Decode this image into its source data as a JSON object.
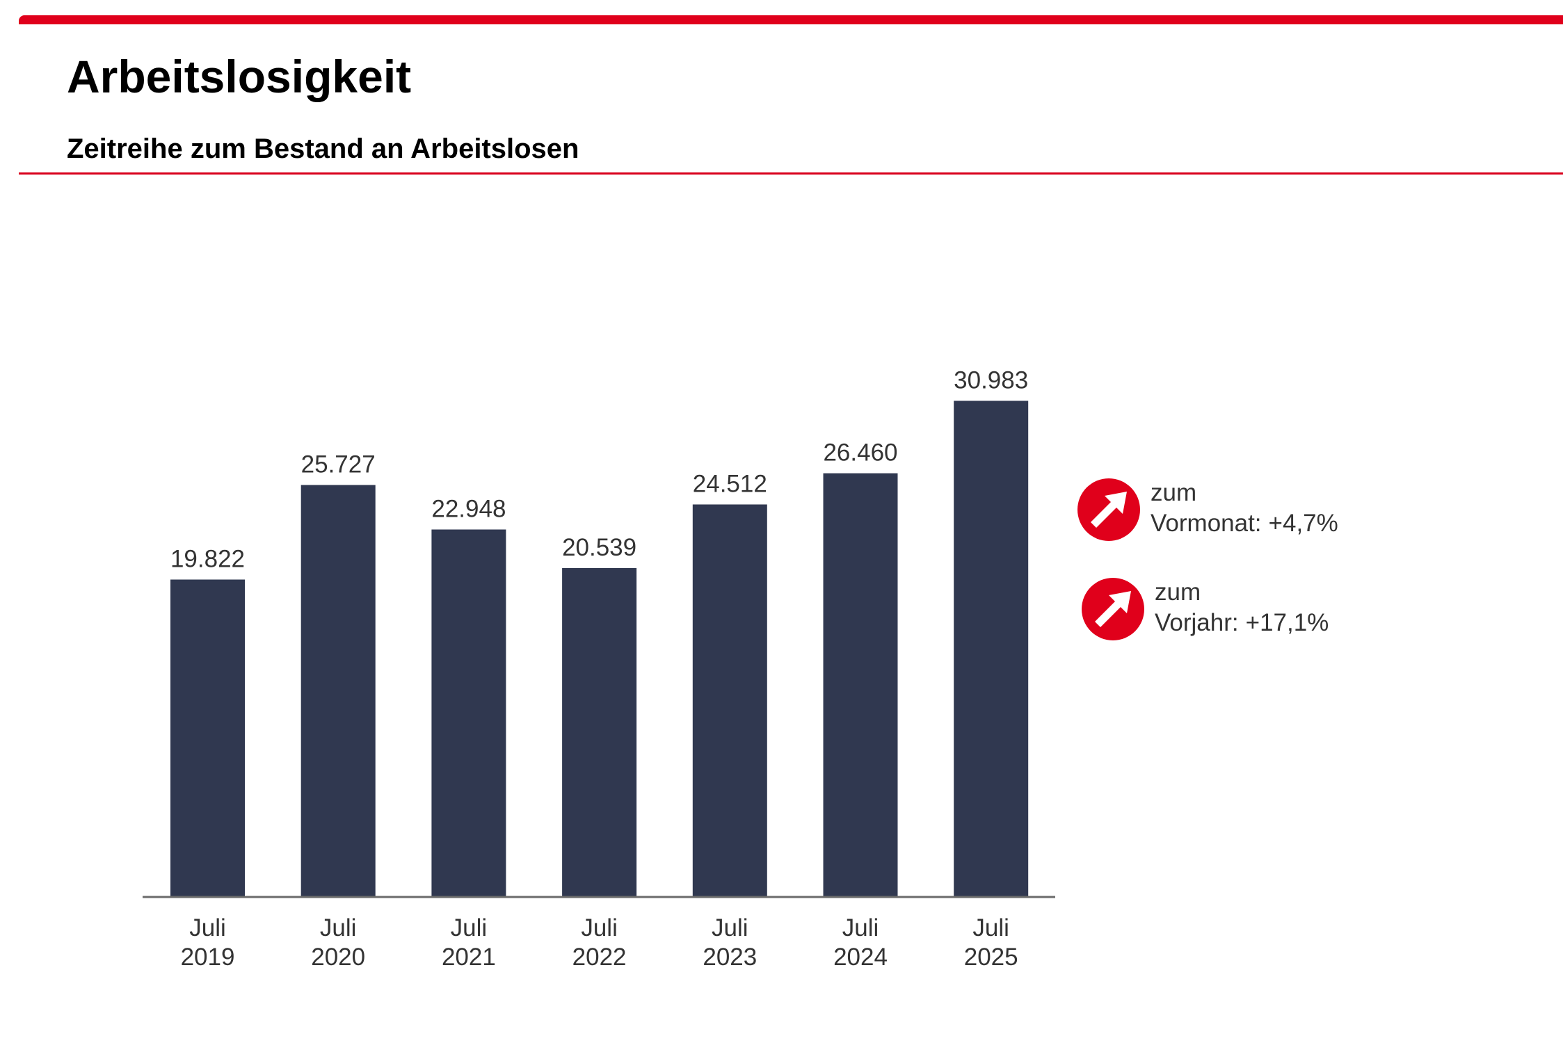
{
  "header": {
    "title": "Arbeitslosigkeit",
    "subtitle": "Zeitreihe zum Bestand an Arbeitslosen",
    "accent_color": "#e0001b"
  },
  "chart_data": {
    "type": "bar",
    "title": "Zeitreihe zum Bestand an Arbeitslosen",
    "xlabel": "",
    "ylabel": "",
    "categories": [
      [
        "Juli",
        "2019"
      ],
      [
        "Juli",
        "2020"
      ],
      [
        "Juli",
        "2021"
      ],
      [
        "Juli",
        "2022"
      ],
      [
        "Juli",
        "2023"
      ],
      [
        "Juli",
        "2024"
      ],
      [
        "Juli",
        "2025"
      ]
    ],
    "values": [
      19822,
      25727,
      22948,
      20539,
      24512,
      26460,
      30983
    ],
    "value_labels": [
      "19.822",
      "25.727",
      "22.948",
      "20.539",
      "24.512",
      "26.460",
      "30.983"
    ],
    "ylim": [
      0,
      33000
    ],
    "grid": false,
    "legend": "none",
    "bar_color": "#303850"
  },
  "indicators": [
    {
      "icon": "arrow-up-right-icon",
      "line1": "zum",
      "label": "Vormonat:",
      "value": "+4,7%",
      "color": "#e0001b"
    },
    {
      "icon": "arrow-up-right-icon",
      "line1": "zum",
      "label": "Vorjahr:",
      "value": "+17,1%",
      "color": "#e0001b"
    }
  ]
}
